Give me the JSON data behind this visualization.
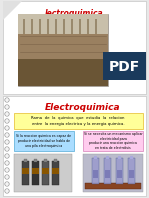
{
  "title_top": "lectroquimica",
  "title_bottom": "Electroquimica",
  "bg_color": "#e8e8e8",
  "slide_top_bg": "#ffffff",
  "slide_bottom_bg": "#ffffff",
  "title_color": "#cc0000",
  "yellow_box_color": "#ffff99",
  "yellow_box_text": "Rama  de  la  quimica  que  estudia  la  relacion\nentre  la energia electrica y la energia quimica.",
  "blue_box_color": "#aaddff",
  "blue_box_text": "Si la reaccion quimica es capaz de\nproducir electricidad se habla de\nuna pila electroquimica",
  "pink_box_color": "#ffccee",
  "pink_box_text": "Si se necesita un mecanismo aplicar\nelectricidad para\nproducir una reaccion quimica\nen trata de electrolisis",
  "spiral_color": "#999999",
  "pdf_bg": "#1a3a5c",
  "lab_img_color": "#a89070",
  "lab_img_dark": "#6a5040",
  "lab_top_color": "#c8c0b0",
  "figsize": [
    1.49,
    1.98
  ],
  "dpi": 100
}
